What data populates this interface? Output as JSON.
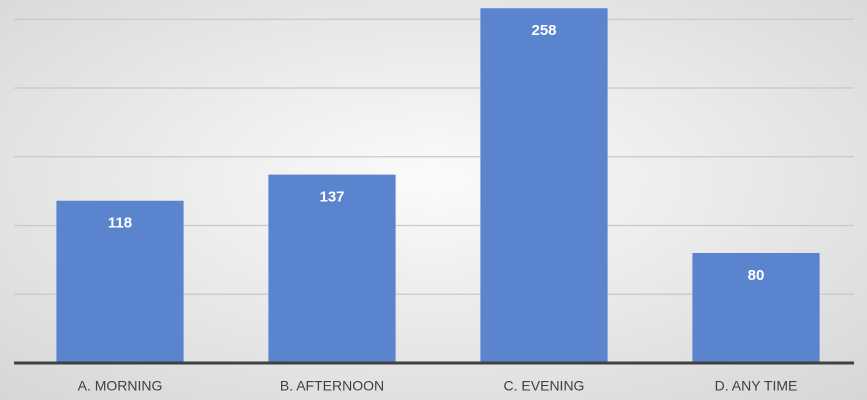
{
  "chart_data": {
    "type": "bar",
    "categories": [
      "A. MORNING",
      "B. AFTERNOON",
      "C. EVENING",
      "D. ANY TIME"
    ],
    "values": [
      118,
      137,
      258,
      80
    ],
    "color": "#5b84cf",
    "ylim": [
      0,
      264
    ],
    "yticks": [
      50,
      100,
      150,
      200,
      250
    ],
    "grid": true
  }
}
